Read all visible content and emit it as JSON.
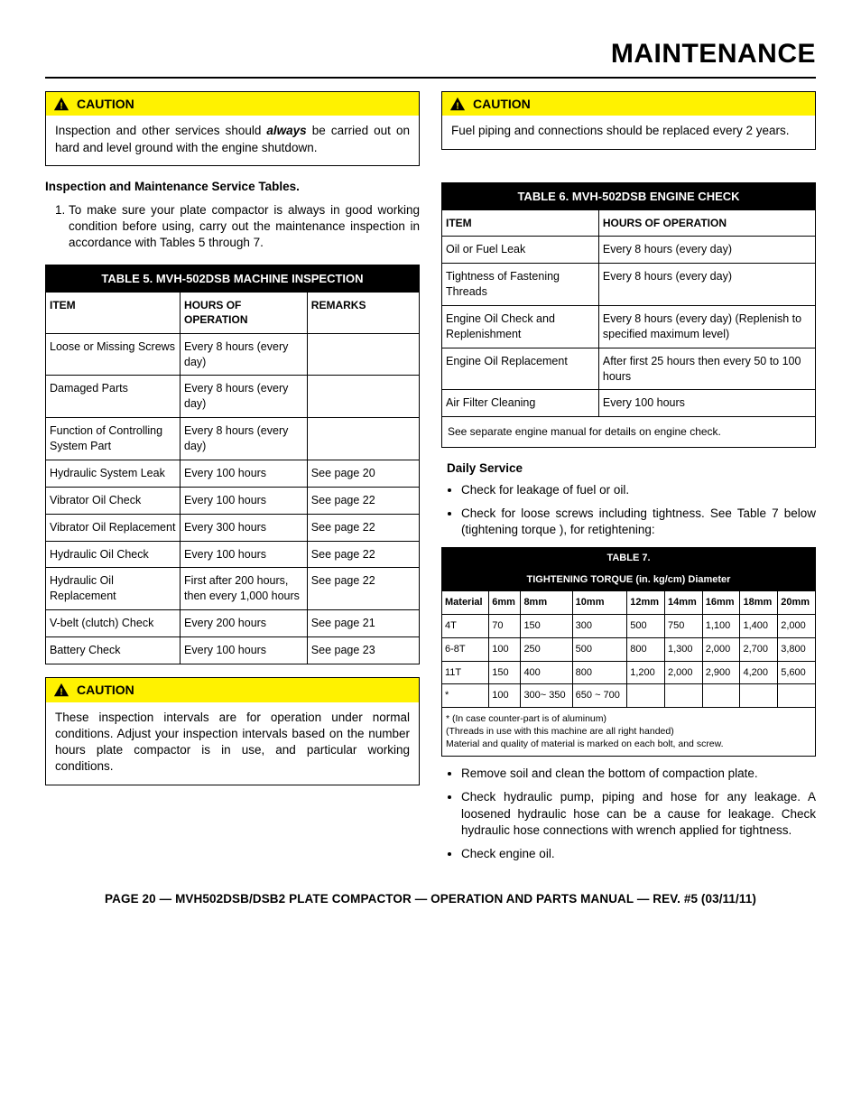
{
  "page": {
    "title": "MAINTENANCE",
    "footer": "PAGE 20 — MVH502DSB/DSB2 PLATE COMPACTOR — OPERATION AND PARTS MANUAL — REV. #5 (03/11/11)"
  },
  "caution_label": "CAUTION",
  "caution1": {
    "pre": "Inspection and other services should ",
    "emph": "always",
    "post": " be carried out on hard and level ground with the engine shutdown."
  },
  "caution2": "These inspection intervals are for operation under normal conditions. Adjust your inspection intervals based on the number hours plate compactor is in use, and particular working conditions.",
  "caution3": "Fuel piping and connections should be replaced every 2 years.",
  "section_heading": "Inspection and Maintenance Service Tables.",
  "intro_list_1": "To make sure your plate compactor is always in good working condition before using, carry out the maintenance inspection in accordance with Tables 5 through 7.",
  "table5": {
    "title": "TABLE 5. MVH-502DSB MACHINE INSPECTION",
    "headers": [
      "ITEM",
      "HOURS OF OPERATION",
      "REMARKS"
    ],
    "col_widths": [
      "36%",
      "34%",
      "30%"
    ],
    "rows": [
      [
        "Loose or Missing Screws",
        "Every 8 hours (every day)",
        ""
      ],
      [
        "Damaged Parts",
        "Every 8 hours (every day)",
        ""
      ],
      [
        "Function of Controlling System Part",
        "Every 8 hours (every day)",
        ""
      ],
      [
        "Hydraulic System Leak",
        "Every 100 hours",
        "See page 20"
      ],
      [
        "Vibrator Oil Check",
        "Every 100 hours",
        "See page 22"
      ],
      [
        "Vibrator Oil Replacement",
        "Every 300 hours",
        "See page 22"
      ],
      [
        "Hydraulic Oil Check",
        "Every 100 hours",
        "See page 22"
      ],
      [
        "Hydraulic Oil Replacement",
        "First after 200 hours, then every 1,000 hours",
        "See page 22"
      ],
      [
        "V-belt (clutch) Check",
        "Every 200 hours",
        "See page 21"
      ],
      [
        "Battery Check",
        "Every 100 hours",
        "See page 23"
      ]
    ]
  },
  "table6": {
    "title": "TABLE 6. MVH-502DSB ENGINE CHECK",
    "headers": [
      "ITEM",
      "HOURS OF OPERATION"
    ],
    "col_widths": [
      "42%",
      "58%"
    ],
    "rows": [
      [
        "Oil or Fuel Leak",
        "Every 8 hours (every day)"
      ],
      [
        "Tightness of Fastening Threads",
        "Every 8 hours (every day)"
      ],
      [
        "Engine Oil Check and Replenishment",
        "Every 8 hours (every day) (Replenish to specified maximum level)"
      ],
      [
        "Engine Oil Replacement",
        "After first 25 hours then every 50 to 100 hours"
      ],
      [
        "Air Filter Cleaning",
        "Every 100 hours"
      ]
    ],
    "note": "See separate engine manual for details on engine check."
  },
  "daily_service": {
    "heading": "Daily Service",
    "items_top": [
      "Check for leakage of fuel or oil.",
      "Check for loose screws including tightness. See Table 7 below (tightening torque ), for retightening:"
    ],
    "items_bottom": [
      "Remove soil and clean the bottom of compaction plate.",
      "Check hydraulic pump, piping and hose for any leakage. A loosened hydraulic hose can be a cause for leakage. Check hydraulic hose connections with wrench applied for tightness.",
      "Check engine oil."
    ]
  },
  "table7": {
    "title": "TABLE 7.",
    "subtitle": "TIGHTENING TORQUE (in. kg/cm) Diameter",
    "headers": [
      "Material",
      "6mm",
      "8mm",
      "10mm",
      "12mm",
      "14mm",
      "16mm",
      "18mm",
      "20mm"
    ],
    "rows": [
      [
        "4T",
        "70",
        "150",
        "300",
        "500",
        "750",
        "1,100",
        "1,400",
        "2,000"
      ],
      [
        "6-8T",
        "100",
        "250",
        "500",
        "800",
        "1,300",
        "2,000",
        "2,700",
        "3,800"
      ],
      [
        "11T",
        "150",
        "400",
        "800",
        "1,200",
        "2,000",
        "2,900",
        "4,200",
        "5,600"
      ],
      [
        "*",
        "100",
        "300~ 350",
        "650 ~ 700",
        "",
        "",
        "",
        "",
        ""
      ]
    ],
    "note": "* (In case counter-part is of aluminum)\n(Threads in use with this machine are all right handed)\nMaterial and quality of material is marked on each bolt, and screw."
  },
  "colors": {
    "caution_bg": "#fff200",
    "header_bg": "#000000",
    "header_fg": "#ffffff"
  }
}
